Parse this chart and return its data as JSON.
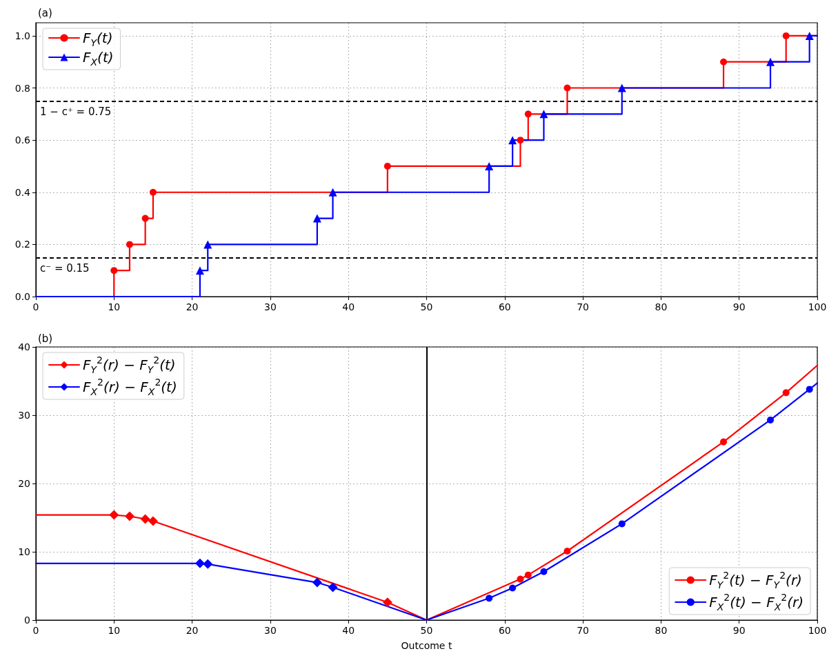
{
  "chart_data": [
    {
      "type": "step",
      "title": "(a)",
      "xlim": [
        0,
        100
      ],
      "xticks": [
        0,
        10,
        20,
        30,
        40,
        50,
        60,
        70,
        80,
        90,
        100
      ],
      "ylim": [
        0,
        1.05
      ],
      "yticks": [
        {
          "value": 0,
          "label": "0.0"
        },
        {
          "value": 0.2,
          "label": "0.2"
        },
        {
          "value": 0.4,
          "label": "0.4"
        },
        {
          "value": 0.6,
          "label": "0.6"
        },
        {
          "value": 0.8,
          "label": "0.8"
        },
        {
          "value": 1,
          "label": "1.0"
        }
      ],
      "grid": true,
      "legend": "top left",
      "line_style": "solid",
      "series": [
        {
          "name": "F$_{Y}$(t)",
          "color": "#ff0000",
          "marker": "circle",
          "x": [
            0,
            10,
            12,
            14,
            15,
            45,
            62,
            63,
            68,
            88,
            96,
            100
          ],
          "values": [
            0,
            0.1,
            0.2,
            0.3,
            0.4,
            0.5,
            0.6,
            0.7,
            0.8,
            0.9,
            1.0,
            1.0
          ]
        },
        {
          "name": "F$_{X}$(t)",
          "color": "#0000ff",
          "marker": "triangle",
          "x": [
            0,
            21,
            22,
            36,
            38,
            58,
            61,
            65,
            75,
            94,
            99,
            100
          ],
          "values": [
            0,
            0.1,
            0.2,
            0.3,
            0.4,
            0.5,
            0.6,
            0.7,
            0.8,
            0.9,
            1.0,
            1.0
          ]
        }
      ],
      "ref_lines": [
        {
          "axis": "y",
          "value": 0.75,
          "label": "1 − c⁺ = 0.75",
          "color": "#000000",
          "line_style": "dashed"
        },
        {
          "axis": "y",
          "value": 0.15,
          "label": "c⁻ = 0.15",
          "color": "#000000",
          "line_style": "dashed"
        }
      ]
    },
    {
      "type": "line",
      "title": "(b)",
      "xlabel": "Outcome t",
      "xlim": [
        0,
        100
      ],
      "xticks": [
        0,
        10,
        20,
        30,
        40,
        50,
        60,
        70,
        80,
        90,
        100
      ],
      "ylim": [
        0,
        40
      ],
      "yticks": [
        0,
        10,
        20,
        30,
        40
      ],
      "grid": true,
      "line_style": "solid",
      "legend": [
        "top left",
        "bottom right"
      ],
      "series": [
        {
          "name": "F$_{Y}$$^{2}$(r) − F$_{Y}$$^{2}$(t)",
          "color": "#ff0000",
          "marker": "diamond",
          "x": [
            0,
            10,
            12,
            14,
            15,
            45,
            50
          ],
          "values": [
            15.4,
            15.4,
            15.2,
            14.8,
            14.5,
            2.6,
            0
          ]
        },
        {
          "name": "F$_{X}$$^{2}$(r) − F$_{X}$$^{2}$(t)",
          "color": "#0000ff",
          "marker": "diamond",
          "x": [
            0,
            21,
            22,
            36,
            38,
            50
          ],
          "values": [
            8.3,
            8.3,
            8.2,
            5.5,
            4.8,
            0
          ]
        },
        {
          "name": "F$_{Y}$$^{2}$(t) − F$_{Y}$$^{2}$(r)",
          "color": "#ff0000",
          "marker": "circle",
          "x": [
            50,
            62,
            63,
            68,
            88,
            96,
            100
          ],
          "values": [
            0,
            6.0,
            6.6,
            10.1,
            26.1,
            33.3,
            37.3
          ]
        },
        {
          "name": "F$_{X}$$^{2}$(t) − F$_{X}$$^{2}$(r)",
          "color": "#0000ff",
          "marker": "circle",
          "x": [
            50,
            58,
            61,
            65,
            75,
            94,
            99,
            100
          ],
          "values": [
            0,
            3.2,
            4.7,
            7.1,
            14.1,
            29.3,
            33.8,
            34.7
          ]
        }
      ],
      "ref_lines": [
        {
          "axis": "x",
          "value": 50,
          "color": "#000000",
          "line_style": "solid"
        }
      ]
    }
  ]
}
